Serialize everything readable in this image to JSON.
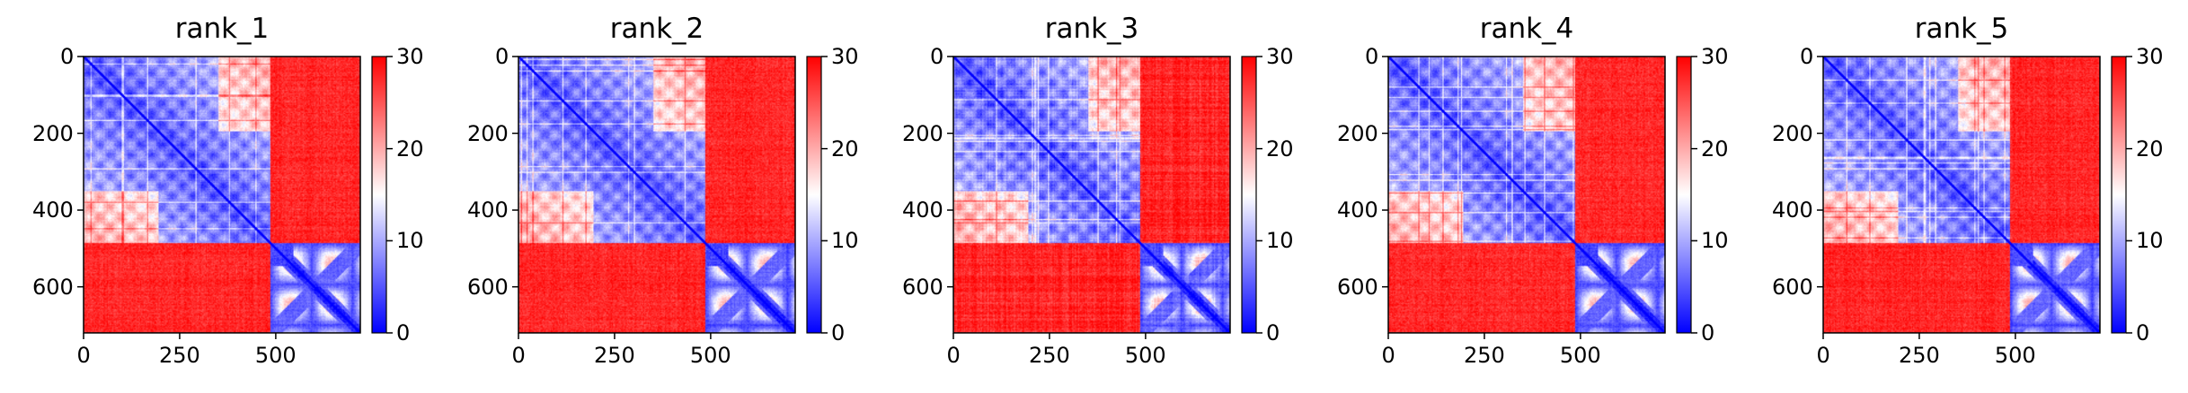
{
  "chart_data": [
    {
      "type": "heatmap",
      "title": "rank_1",
      "variant": 1,
      "x_ticks": [
        0,
        250,
        500
      ],
      "y_ticks": [
        0,
        200,
        400,
        600
      ],
      "xlim": [
        0,
        720
      ],
      "ylim": [
        720,
        0
      ],
      "matrix_size": 720,
      "domain_boundary": 485,
      "colorbar": {
        "ticks": [
          0,
          10,
          20,
          30
        ],
        "range": [
          0,
          30
        ],
        "colormap": [
          "#0000ff",
          "#ffffff",
          "#ff0000"
        ]
      }
    },
    {
      "type": "heatmap",
      "title": "rank_2",
      "variant": 2,
      "x_ticks": [
        0,
        250,
        500
      ],
      "y_ticks": [
        0,
        200,
        400,
        600
      ],
      "xlim": [
        0,
        720
      ],
      "ylim": [
        720,
        0
      ],
      "matrix_size": 720,
      "domain_boundary": 485,
      "colorbar": {
        "ticks": [
          0,
          10,
          20,
          30
        ],
        "range": [
          0,
          30
        ],
        "colormap": [
          "#0000ff",
          "#ffffff",
          "#ff0000"
        ]
      }
    },
    {
      "type": "heatmap",
      "title": "rank_3",
      "variant": 3,
      "x_ticks": [
        0,
        250,
        500
      ],
      "y_ticks": [
        0,
        200,
        400,
        600
      ],
      "xlim": [
        0,
        720
      ],
      "ylim": [
        720,
        0
      ],
      "matrix_size": 720,
      "domain_boundary": 485,
      "colorbar": {
        "ticks": [
          0,
          10,
          20,
          30
        ],
        "range": [
          0,
          30
        ],
        "colormap": [
          "#0000ff",
          "#ffffff",
          "#ff0000"
        ]
      }
    },
    {
      "type": "heatmap",
      "title": "rank_4",
      "variant": 4,
      "x_ticks": [
        0,
        250,
        500
      ],
      "y_ticks": [
        0,
        200,
        400,
        600
      ],
      "xlim": [
        0,
        720
      ],
      "ylim": [
        720,
        0
      ],
      "matrix_size": 720,
      "domain_boundary": 485,
      "colorbar": {
        "ticks": [
          0,
          10,
          20,
          30
        ],
        "range": [
          0,
          30
        ],
        "colormap": [
          "#0000ff",
          "#ffffff",
          "#ff0000"
        ]
      }
    },
    {
      "type": "heatmap",
      "title": "rank_5",
      "variant": 5,
      "x_ticks": [
        0,
        250,
        500
      ],
      "y_ticks": [
        0,
        200,
        400,
        600
      ],
      "xlim": [
        0,
        720
      ],
      "ylim": [
        720,
        0
      ],
      "matrix_size": 720,
      "domain_boundary": 485,
      "colorbar": {
        "ticks": [
          0,
          10,
          20,
          30
        ],
        "range": [
          0,
          30
        ],
        "colormap": [
          "#0000ff",
          "#ffffff",
          "#ff0000"
        ]
      }
    }
  ]
}
